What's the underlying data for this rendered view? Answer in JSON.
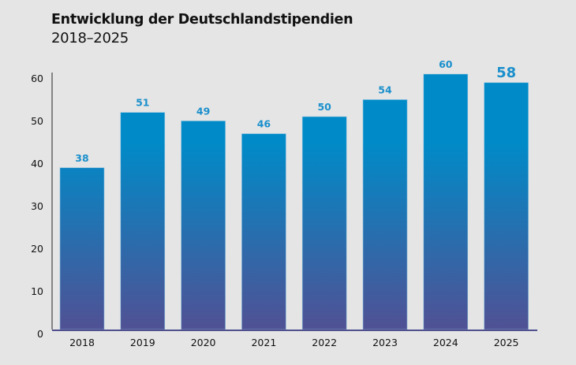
{
  "chart_data": {
    "type": "bar",
    "title": "Entwicklung der Deutschlandstipendien",
    "subtitle": "2018–2025",
    "xlabel": "",
    "ylabel": "",
    "categories": [
      "2018",
      "2019",
      "2020",
      "2021",
      "2022",
      "2023",
      "2024",
      "2025"
    ],
    "values": [
      38,
      51,
      49,
      46,
      50,
      54,
      60,
      58
    ],
    "data_labels": [
      "38",
      "51",
      "49",
      "46",
      "50",
      "54",
      "60",
      "58"
    ],
    "highlighted_category": "2025",
    "ylim": [
      0,
      60
    ],
    "yticks": [
      0,
      10,
      20,
      30,
      40,
      50,
      60
    ],
    "grid": false,
    "colors": {
      "bar_top": "#008bc8",
      "bar_bottom": "#505194",
      "label": "#1a8fcc",
      "axis_x": "#4f4f8f",
      "background": "#e5e5e5"
    }
  }
}
